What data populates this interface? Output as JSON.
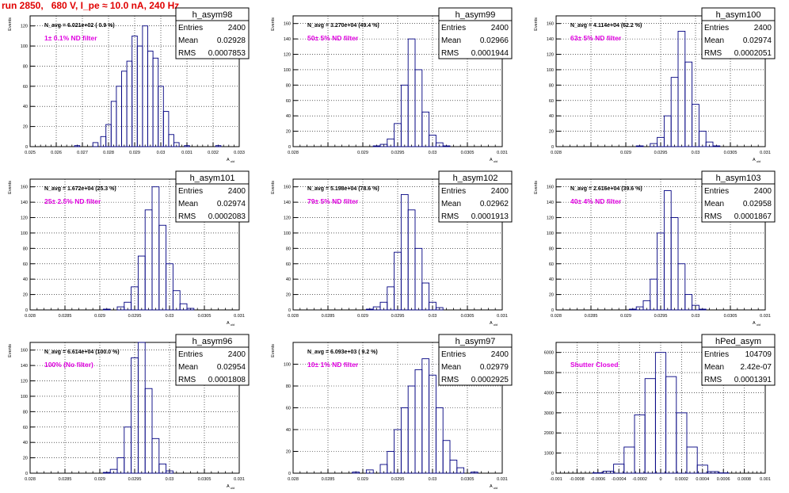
{
  "header": {
    "title": "run 2850,   680 V, I_pe ≈ 10.0 nA, 240 Hz"
  },
  "chart_data": [
    {
      "type": "histogram",
      "name": "h_asym98",
      "navg": "N_avg = 6.021e+02 ( 0.9 %)",
      "annotation": "1± 0.1% ND filter",
      "stats": {
        "entries": "2400",
        "mean": "0.02928",
        "rms": "0.0007853"
      },
      "xlabel": "A_uid",
      "ylabel": "Events",
      "xlim": [
        0.025,
        0.033
      ],
      "ylim": [
        0,
        130
      ],
      "xticks": [
        "0.025",
        "0.026",
        "0.027",
        "0.028",
        "0.029",
        "0.03",
        "0.031",
        "0.032",
        "0.033"
      ],
      "yticks": [
        "0",
        "20",
        "40",
        "60",
        "80",
        "100",
        "120"
      ],
      "bins": [
        [
          0.0268,
          1
        ],
        [
          0.0275,
          4
        ],
        [
          0.0278,
          10
        ],
        [
          0.028,
          22
        ],
        [
          0.0282,
          45
        ],
        [
          0.0284,
          60
        ],
        [
          0.0286,
          75
        ],
        [
          0.0288,
          85
        ],
        [
          0.029,
          110
        ],
        [
          0.0292,
          100
        ],
        [
          0.0294,
          120
        ],
        [
          0.0296,
          95
        ],
        [
          0.0298,
          88
        ],
        [
          0.03,
          60
        ],
        [
          0.0302,
          35
        ],
        [
          0.0304,
          12
        ],
        [
          0.0306,
          4
        ],
        [
          0.031,
          1
        ],
        [
          0.0322,
          1
        ]
      ]
    },
    {
      "type": "histogram",
      "name": "h_asym99",
      "navg": "N_avg = 3.270e+04 (49.4 %)",
      "annotation": "50± 5% ND filter",
      "stats": {
        "entries": "2400",
        "mean": "0.02966",
        "rms": "0.0001944"
      },
      "xlabel": "A_uid",
      "ylabel": "Events",
      "xlim": [
        0.028,
        0.031
      ],
      "ylim": [
        0,
        170
      ],
      "xticks": [
        "0.028",
        "",
        "0.029",
        "0.0295",
        "0.03",
        "0.0305",
        "0.031"
      ],
      "yticks": [
        "0",
        "20",
        "40",
        "60",
        "80",
        "100",
        "120",
        "140",
        "160"
      ],
      "bins": [
        [
          0.0292,
          1
        ],
        [
          0.0293,
          3
        ],
        [
          0.0294,
          10
        ],
        [
          0.0295,
          30
        ],
        [
          0.0296,
          80
        ],
        [
          0.0297,
          140
        ],
        [
          0.0298,
          100
        ],
        [
          0.0299,
          45
        ],
        [
          0.03,
          15
        ],
        [
          0.0301,
          5
        ],
        [
          0.0302,
          1
        ]
      ]
    },
    {
      "type": "histogram",
      "name": "h_asym100",
      "navg": "N_avg = 4.114e+04 (62.2 %)",
      "annotation": "63± 5% ND filter",
      "stats": {
        "entries": "2400",
        "mean": "0.02974",
        "rms": "0.0002051"
      },
      "xlabel": "A_uid",
      "ylabel": "Events",
      "xlim": [
        0.028,
        0.031
      ],
      "ylim": [
        0,
        170
      ],
      "xticks": [
        "0.028",
        "",
        "0.029",
        "0.0295",
        "0.03",
        "0.0305",
        "0.031"
      ],
      "yticks": [
        "0",
        "20",
        "40",
        "60",
        "80",
        "100",
        "120",
        "140",
        "160"
      ],
      "bins": [
        [
          0.0292,
          1
        ],
        [
          0.0294,
          4
        ],
        [
          0.0295,
          12
        ],
        [
          0.0296,
          40
        ],
        [
          0.0297,
          90
        ],
        [
          0.0298,
          150
        ],
        [
          0.0299,
          110
        ],
        [
          0.03,
          55
        ],
        [
          0.0301,
          20
        ],
        [
          0.0302,
          6
        ],
        [
          0.0303,
          1
        ]
      ]
    },
    {
      "type": "histogram",
      "name": "h_asym101",
      "navg": "N_avg = 1.672e+04 (25.3 %)",
      "annotation": "25± 2.5% ND filter",
      "stats": {
        "entries": "2400",
        "mean": "0.02974",
        "rms": "0.0002083"
      },
      "xlabel": "A_uid",
      "ylabel": "Events",
      "xlim": [
        0.028,
        0.031
      ],
      "ylim": [
        0,
        170
      ],
      "xticks": [
        "0.028",
        "0.0285",
        "0.029",
        "0.0295",
        "0.03",
        "0.0305",
        "0.031"
      ],
      "yticks": [
        "0",
        "20",
        "40",
        "60",
        "80",
        "100",
        "120",
        "140",
        "160"
      ],
      "bins": [
        [
          0.0291,
          1
        ],
        [
          0.0293,
          4
        ],
        [
          0.0294,
          10
        ],
        [
          0.0295,
          30
        ],
        [
          0.0296,
          70
        ],
        [
          0.0297,
          130
        ],
        [
          0.0298,
          160
        ],
        [
          0.0299,
          110
        ],
        [
          0.03,
          60
        ],
        [
          0.0301,
          25
        ],
        [
          0.0302,
          8
        ],
        [
          0.0303,
          2
        ]
      ]
    },
    {
      "type": "histogram",
      "name": "h_asym102",
      "navg": "N_avg = 5.198e+04 (78.6 %)",
      "annotation": "79± 5% ND filter",
      "stats": {
        "entries": "2400",
        "mean": "0.02962",
        "rms": "0.0001913"
      },
      "xlabel": "A_uid",
      "ylabel": "Events",
      "xlim": [
        0.028,
        0.031
      ],
      "ylim": [
        0,
        170
      ],
      "xticks": [
        "0.028",
        "0.0285",
        "0.029",
        "0.0295",
        "0.03",
        "0.0305",
        "0.031"
      ],
      "yticks": [
        "0",
        "20",
        "40",
        "60",
        "80",
        "100",
        "120",
        "140",
        "160"
      ],
      "bins": [
        [
          0.0291,
          1
        ],
        [
          0.0292,
          4
        ],
        [
          0.0293,
          10
        ],
        [
          0.0294,
          30
        ],
        [
          0.0295,
          75
        ],
        [
          0.0296,
          150
        ],
        [
          0.0297,
          130
        ],
        [
          0.0298,
          80
        ],
        [
          0.0299,
          35
        ],
        [
          0.03,
          10
        ],
        [
          0.0301,
          3
        ]
      ]
    },
    {
      "type": "histogram",
      "name": "h_asym103",
      "navg": "N_avg = 2.616e+04 (39.6 %)",
      "annotation": "40± 4% ND filter",
      "stats": {
        "entries": "2400",
        "mean": "0.02958",
        "rms": "0.0001867"
      },
      "xlabel": "A_uid",
      "ylabel": "Events",
      "xlim": [
        0.028,
        0.031
      ],
      "ylim": [
        0,
        170
      ],
      "xticks": [
        "0.028",
        "0.0285",
        "0.029",
        "0.0295",
        "0.03",
        "0.0305",
        "0.031"
      ],
      "yticks": [
        "0",
        "20",
        "40",
        "60",
        "80",
        "100",
        "120",
        "140",
        "160"
      ],
      "bins": [
        [
          0.0291,
          1
        ],
        [
          0.0292,
          4
        ],
        [
          0.0293,
          12
        ],
        [
          0.0294,
          40
        ],
        [
          0.0295,
          100
        ],
        [
          0.0296,
          155
        ],
        [
          0.0297,
          120
        ],
        [
          0.0298,
          60
        ],
        [
          0.0299,
          20
        ],
        [
          0.03,
          6
        ],
        [
          0.0301,
          1
        ]
      ]
    },
    {
      "type": "histogram",
      "name": "h_asym96",
      "navg": "N_avg = 6.614e+04 (100.0 %)",
      "annotation": "100% (No filter)",
      "stats": {
        "entries": "2400",
        "mean": "0.02954",
        "rms": "0.0001808"
      },
      "xlabel": "A_uid",
      "ylabel": "Events",
      "xlim": [
        0.028,
        0.031
      ],
      "ylim": [
        0,
        170
      ],
      "xticks": [
        "0.028",
        "0.0285",
        "0.029",
        "0.0295",
        "0.03",
        "0.0305",
        "0.031"
      ],
      "yticks": [
        "0",
        "20",
        "40",
        "60",
        "80",
        "100",
        "120",
        "140",
        "160"
      ],
      "bins": [
        [
          0.0291,
          1
        ],
        [
          0.0292,
          5
        ],
        [
          0.0293,
          20
        ],
        [
          0.0294,
          60
        ],
        [
          0.0295,
          150
        ],
        [
          0.0296,
          170
        ],
        [
          0.0297,
          110
        ],
        [
          0.0298,
          45
        ],
        [
          0.0299,
          12
        ],
        [
          0.03,
          3
        ]
      ]
    },
    {
      "type": "histogram",
      "name": "h_asym97",
      "navg": "N_avg = 6.093e+03 ( 9.2 %)",
      "annotation": "10± 1% ND filter",
      "stats": {
        "entries": "2400",
        "mean": "0.02979",
        "rms": "0.0002925"
      },
      "xlabel": "A_uid",
      "ylabel": "Events",
      "xlim": [
        0.028,
        0.031
      ],
      "ylim": [
        0,
        120
      ],
      "xticks": [
        "0.028",
        "0.0285",
        "0.029",
        "0.0295",
        "0.03",
        "0.0305",
        "0.031"
      ],
      "yticks": [
        "0",
        "20",
        "40",
        "60",
        "80",
        "100"
      ],
      "bins": [
        [
          0.0289,
          1
        ],
        [
          0.0291,
          3
        ],
        [
          0.0293,
          8
        ],
        [
          0.0294,
          20
        ],
        [
          0.0295,
          40
        ],
        [
          0.0296,
          60
        ],
        [
          0.0297,
          80
        ],
        [
          0.0298,
          95
        ],
        [
          0.0299,
          105
        ],
        [
          0.03,
          90
        ],
        [
          0.0301,
          60
        ],
        [
          0.0302,
          30
        ],
        [
          0.0303,
          12
        ],
        [
          0.0304,
          5
        ],
        [
          0.0306,
          1
        ]
      ]
    },
    {
      "type": "histogram",
      "name": "hPed_asym",
      "navg": "",
      "annotation": "Shutter Closed",
      "stats": {
        "entries": "104709",
        "mean": "2.42e-07",
        "rms": "0.0001391"
      },
      "xlabel": "",
      "ylabel": "",
      "xlim": [
        -0.001,
        0.001
      ],
      "ylim": [
        0,
        6500
      ],
      "xticks": [
        "-0.001",
        "-0.0008",
        "-0.0006",
        "-0.0004",
        "-0.0002",
        "0",
        "0.0002",
        "0.0004",
        "0.0006",
        "0.0008",
        "0.001"
      ],
      "yticks": [
        "0",
        "1000",
        "2000",
        "3000",
        "4000",
        "5000",
        "6000"
      ],
      "bins": [
        [
          -0.0006,
          20
        ],
        [
          -0.0005,
          100
        ],
        [
          -0.0004,
          450
        ],
        [
          -0.0003,
          1300
        ],
        [
          -0.0002,
          2900
        ],
        [
          -0.0001,
          4700
        ],
        [
          0,
          6000
        ],
        [
          0.0001,
          4800
        ],
        [
          0.0002,
          3000
        ],
        [
          0.0003,
          1300
        ],
        [
          0.0004,
          400
        ],
        [
          0.0005,
          80
        ],
        [
          0.0006,
          15
        ]
      ]
    }
  ]
}
